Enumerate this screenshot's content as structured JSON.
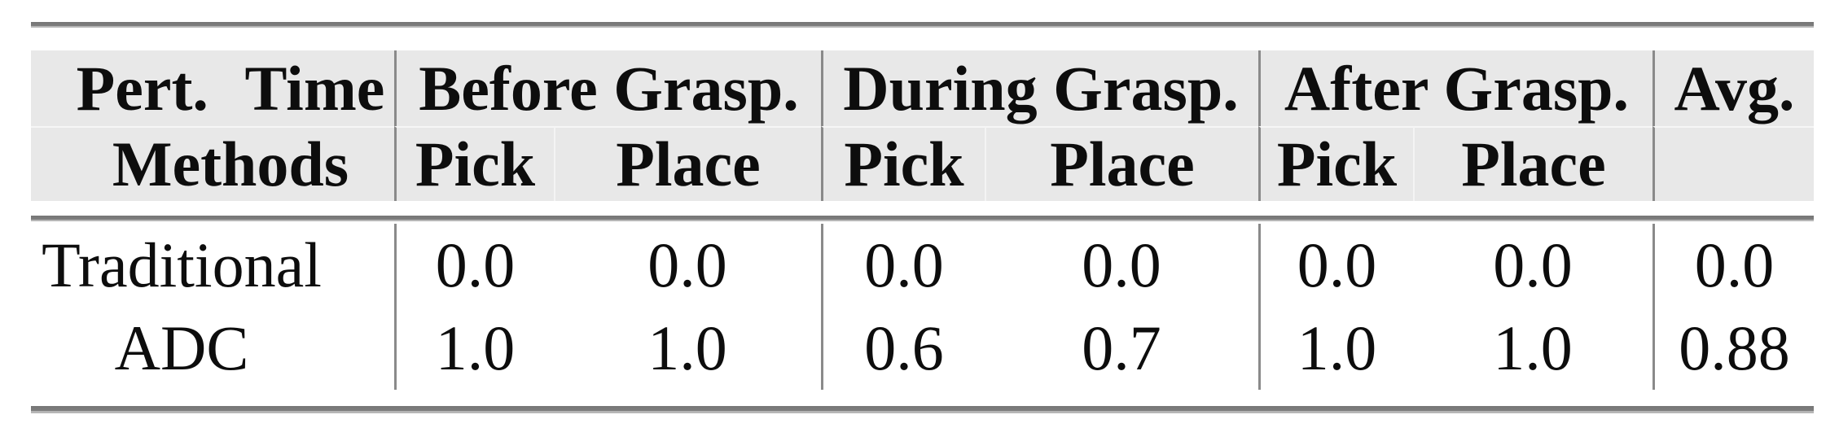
{
  "table": {
    "header": {
      "corner": {
        "line1": "Pert. Time",
        "line2": "Methods"
      },
      "groups": [
        {
          "label": "Before Grasp.",
          "subcols": [
            "Pick",
            "Place"
          ]
        },
        {
          "label": "During Grasp.",
          "subcols": [
            "Pick",
            "Place"
          ]
        },
        {
          "label": "After Grasp.",
          "subcols": [
            "Pick",
            "Place"
          ]
        }
      ],
      "avg_label": "Avg."
    },
    "rows": [
      {
        "method": "Traditional",
        "values": [
          "0.0",
          "0.0",
          "0.0",
          "0.0",
          "0.0",
          "0.0"
        ],
        "avg": "0.0"
      },
      {
        "method": "ADC",
        "values": [
          "1.0",
          "1.0",
          "0.6",
          "0.7",
          "1.0",
          "1.0"
        ],
        "avg": "0.88"
      }
    ],
    "colors": {
      "header_band": "#e8e8e8",
      "rule_dark": "#7a7a7a",
      "rule_light": "#b5b5b5",
      "column_divider": "#8a8a8a",
      "text": "#0d0d0d"
    }
  }
}
